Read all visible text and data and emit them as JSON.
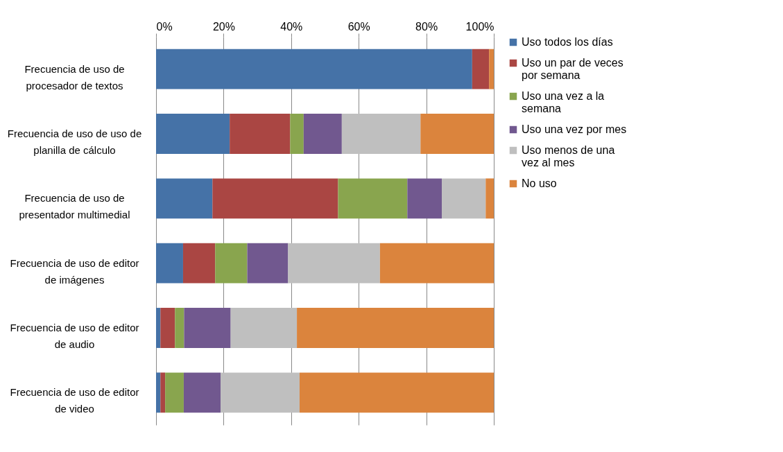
{
  "chart_data": {
    "type": "bar",
    "orientation": "horizontal",
    "stacked": true,
    "categories": [
      "Frecuencia de uso de\nprocesador de textos",
      "Frecuencia de uso de uso de\nplanilla de cálculo",
      "Frecuencia de uso de\npresentador multimedial",
      "Frecuencia de uso de editor\nde imágenes",
      "Frecuencia de uso de editor\nde audio",
      "Frecuencia de uso de editor\nde video"
    ],
    "series": [
      {
        "name": "Uso todos los días",
        "color": "#4572a7",
        "values": [
          93.6,
          21.8,
          16.7,
          8.0,
          1.3,
          1.3
        ]
      },
      {
        "name": "Uso un par de veces\npor semana",
        "color": "#aa4643",
        "values": [
          5.0,
          17.9,
          37.2,
          9.5,
          4.3,
          1.4
        ]
      },
      {
        "name": "Uso una vez a la\nsemana",
        "color": "#89a54e",
        "values": [
          0,
          4.0,
          20.5,
          9.5,
          2.7,
          5.5
        ]
      },
      {
        "name": "Uso una vez por mes",
        "color": "#71588f",
        "values": [
          0,
          11.3,
          10.2,
          12.1,
          13.8,
          10.9
        ]
      },
      {
        "name": "Uso menos de una\nvez al mes",
        "color": "#bfbfbf",
        "values": [
          0,
          23.3,
          13.0,
          27.2,
          19.6,
          23.4
        ]
      },
      {
        "name": "No uso",
        "color": "#db843d",
        "values": [
          1.4,
          21.7,
          2.4,
          33.7,
          58.3,
          57.5
        ]
      }
    ],
    "xlim": [
      0,
      100
    ],
    "xticks": [
      {
        "value": 0,
        "label": "0%"
      },
      {
        "value": 20,
        "label": "20%"
      },
      {
        "value": 40,
        "label": "40%"
      },
      {
        "value": 60,
        "label": "60%"
      },
      {
        "value": 80,
        "label": "80%"
      },
      {
        "value": 100,
        "label": "100%"
      }
    ],
    "grid": "x",
    "legend": "right"
  }
}
